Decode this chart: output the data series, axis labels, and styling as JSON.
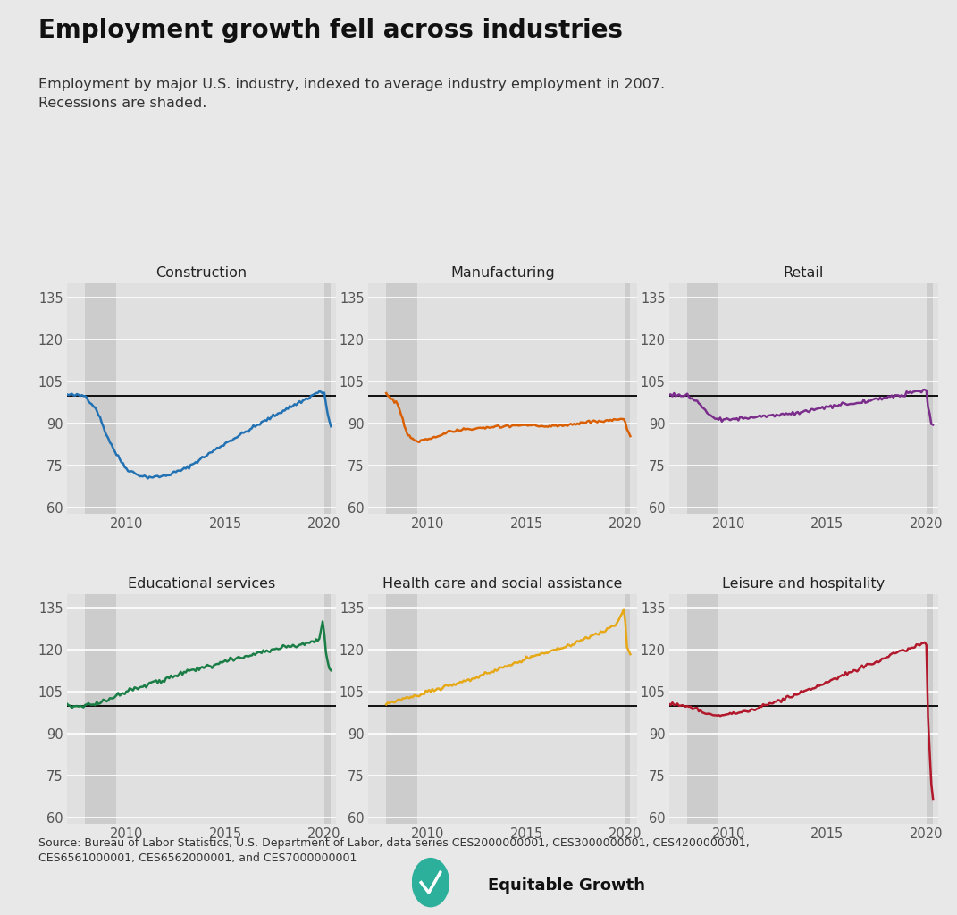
{
  "title": "Employment growth fell across industries",
  "subtitle": "Employment by major U.S. industry, indexed to average industry employment in 2007.\nRecessions are shaded.",
  "source": "Source: Bureau of Labor Statistics, U.S. Department of Labor, data series CES2000000001, CES3000000001, CES4200000001,\nCES6561000001, CES6562000001, and CES7000000001",
  "bg_color": "#e8e8e8",
  "panel_bg": "#e0e0e0",
  "recession_color": "#cccccc",
  "grid_color": "#ffffff",
  "ylim": [
    58,
    140
  ],
  "yticks": [
    60,
    75,
    90,
    105,
    120,
    135
  ],
  "xlim": [
    2007.0,
    2020.58
  ],
  "xticks": [
    2010,
    2015,
    2020
  ],
  "reference_value": 100,
  "recession1": [
    2007.917,
    2009.5
  ],
  "recession2": [
    2020.0,
    2020.42
  ],
  "panels": [
    {
      "title": "Construction",
      "color": "#2271b3",
      "start": 2007.0
    },
    {
      "title": "Manufacturing",
      "color": "#d95f02",
      "start": 2007.917
    },
    {
      "title": "Retail",
      "color": "#7b2d8b",
      "start": 2007.0
    },
    {
      "title": "Educational services",
      "color": "#1a7d45",
      "start": 2007.0
    },
    {
      "title": "Health care and social assistance",
      "color": "#e6a817",
      "start": 2007.917
    },
    {
      "title": "Leisure and hospitality",
      "color": "#b2182b",
      "start": 2007.0
    }
  ]
}
